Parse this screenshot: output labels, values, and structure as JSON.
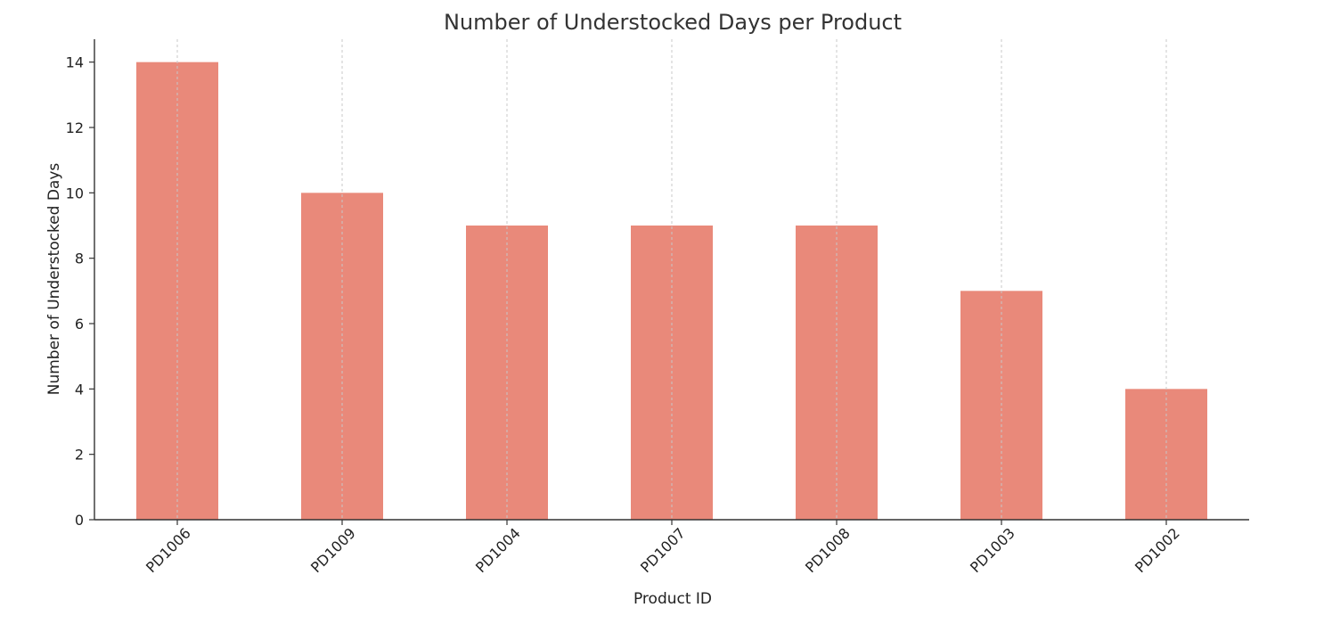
{
  "chart_data": {
    "type": "bar",
    "title": "Number of Understocked Days per Product",
    "xlabel": "Product ID",
    "ylabel": "Number of Understocked Days",
    "categories": [
      "PD1006",
      "PD1009",
      "PD1004",
      "PD1007",
      "PD1008",
      "PD1003",
      "PD1002"
    ],
    "values": [
      14,
      10,
      9,
      9,
      9,
      7,
      4
    ],
    "ylim": [
      0,
      14.7
    ],
    "yticks": [
      0,
      2,
      4,
      6,
      8,
      10,
      12,
      14
    ],
    "grid": "vertical dashed at categories",
    "bar_color": "#e9897a",
    "legend": "none"
  }
}
